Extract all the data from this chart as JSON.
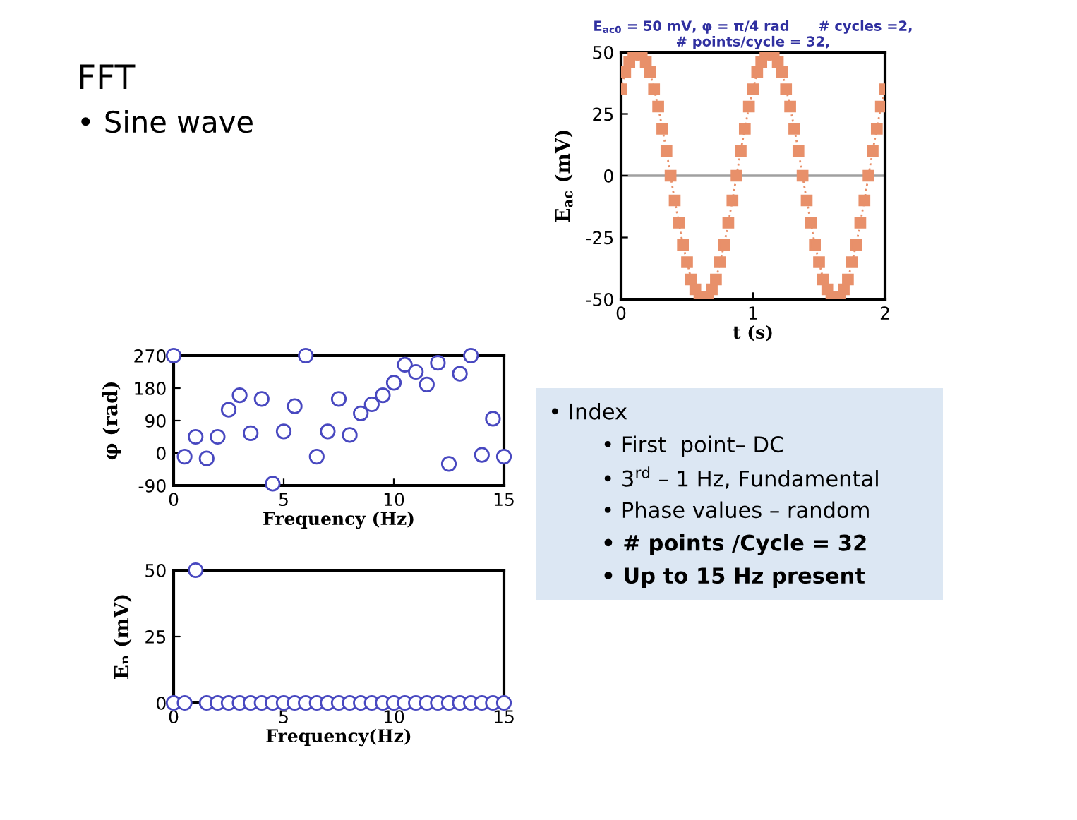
{
  "chart_data": [
    {
      "type": "other",
      "title": "FFT",
      "annotations": [
        "• Sine wave"
      ]
    },
    {
      "type": "line",
      "title": "E$_{ac0}$ = 50 mV, φ = π/4 rad      # cycles =2,\n# points/cycle = 32,",
      "xlabel": "t (s)",
      "ylabel": "E$_{ac}$ (mV)",
      "marker": "square",
      "line_style": "dotted",
      "xlim": [
        0,
        2
      ],
      "ylim": [
        -50,
        50
      ],
      "xticks": [
        0,
        1,
        2
      ],
      "yticks": [
        -50,
        -25,
        0,
        25,
        50
      ],
      "ref_lines": [
        {
          "axis": "y",
          "value": 0,
          "color": "#a0a0a0"
        }
      ],
      "series": [
        {
          "color": "#e8906a",
          "x": [
            0,
            0.03125,
            0.0625,
            0.09375,
            0.125,
            0.15625,
            0.1875,
            0.21875,
            0.25,
            0.28125,
            0.3125,
            0.34375,
            0.375,
            0.40625,
            0.4375,
            0.46875,
            0.5,
            0.53125,
            0.5625,
            0.59375,
            0.625,
            0.65625,
            0.6875,
            0.71875,
            0.75,
            0.78125,
            0.8125,
            0.84375,
            0.875,
            0.90625,
            0.9375,
            0.96875,
            1,
            1.03125,
            1.0625,
            1.09375,
            1.125,
            1.15625,
            1.1875,
            1.21875,
            1.25,
            1.28125,
            1.3125,
            1.34375,
            1.375,
            1.40625,
            1.4375,
            1.46875,
            1.5,
            1.53125,
            1.5625,
            1.59375,
            1.625,
            1.65625,
            1.6875,
            1.71875,
            1.75,
            1.78125,
            1.8125,
            1.84375,
            1.875,
            1.90625,
            1.9375,
            1.96875,
            2
          ],
          "values": [
            35,
            42,
            46,
            49,
            50,
            49,
            46,
            42,
            35,
            28,
            19,
            10,
            0,
            -10,
            -19,
            -28,
            -35,
            -42,
            -46,
            -49,
            -50,
            -49,
            -46,
            -42,
            -35,
            -28,
            -19,
            -10,
            0,
            10,
            19,
            28,
            35,
            42,
            46,
            49,
            50,
            49,
            46,
            42,
            35,
            28,
            19,
            10,
            0,
            -10,
            -19,
            -28,
            -35,
            -42,
            -46,
            -49,
            -50,
            -49,
            -46,
            -42,
            -35,
            -28,
            -19,
            -10,
            0,
            10,
            19,
            28,
            35
          ]
        }
      ]
    },
    {
      "type": "scatter",
      "xlabel": "Frequency (Hz)",
      "ylabel": "φ (rad)",
      "marker": "circle",
      "xlim": [
        0,
        15
      ],
      "ylim": [
        -90,
        270
      ],
      "xticks": [
        0,
        5,
        10,
        15
      ],
      "yticks": [
        -90,
        0,
        90,
        180,
        270
      ],
      "series": [
        {
          "color": "#4848c0",
          "x": [
            0,
            0.5,
            1,
            1.5,
            2,
            2.5,
            3,
            3.5,
            4,
            4.5,
            5,
            5.5,
            6,
            6.5,
            7,
            7.5,
            8,
            8.5,
            9,
            9.5,
            10,
            10.5,
            11,
            11.5,
            12,
            12.5,
            13,
            13.5,
            14,
            14.5,
            15
          ],
          "values": [
            270,
            -10,
            45,
            -15,
            45,
            120,
            160,
            55,
            150,
            -85,
            60,
            130,
            270,
            -10,
            60,
            150,
            50,
            110,
            135,
            160,
            195,
            245,
            225,
            190,
            250,
            -30,
            220,
            270,
            -5,
            95,
            -10
          ]
        }
      ]
    },
    {
      "type": "scatter",
      "xlabel": "Frequency(Hz)",
      "ylabel": "Eₙ (mV)",
      "marker": "circle",
      "xlim": [
        0,
        15
      ],
      "ylim": [
        0,
        50
      ],
      "xticks": [
        0,
        5,
        10,
        15
      ],
      "yticks": [
        0,
        25,
        50
      ],
      "series": [
        {
          "color": "#4848c0",
          "x": [
            0,
            0.5,
            1,
            1.5,
            2,
            2.5,
            3,
            3.5,
            4,
            4.5,
            5,
            5.5,
            6,
            6.5,
            7,
            7.5,
            8,
            8.5,
            9,
            9.5,
            10,
            10.5,
            11,
            11.5,
            12,
            12.5,
            13,
            13.5,
            14,
            14.5,
            15
          ],
          "values": [
            0,
            0,
            50,
            0,
            0,
            0,
            0,
            0,
            0,
            0,
            0,
            0,
            0,
            0,
            0,
            0,
            0,
            0,
            0,
            0,
            0,
            0,
            0,
            0,
            0,
            0,
            0,
            0,
            0,
            0,
            0
          ]
        }
      ]
    },
    {
      "type": "other",
      "annotations": [
        "• Index",
        "• First  point– DC",
        "• 3$^{rd}$ – 1 Hz, Fundamental",
        "• Phase values – random",
        "• # points /Cycle = 32",
        "• Up to 15 Hz present"
      ]
    }
  ]
}
